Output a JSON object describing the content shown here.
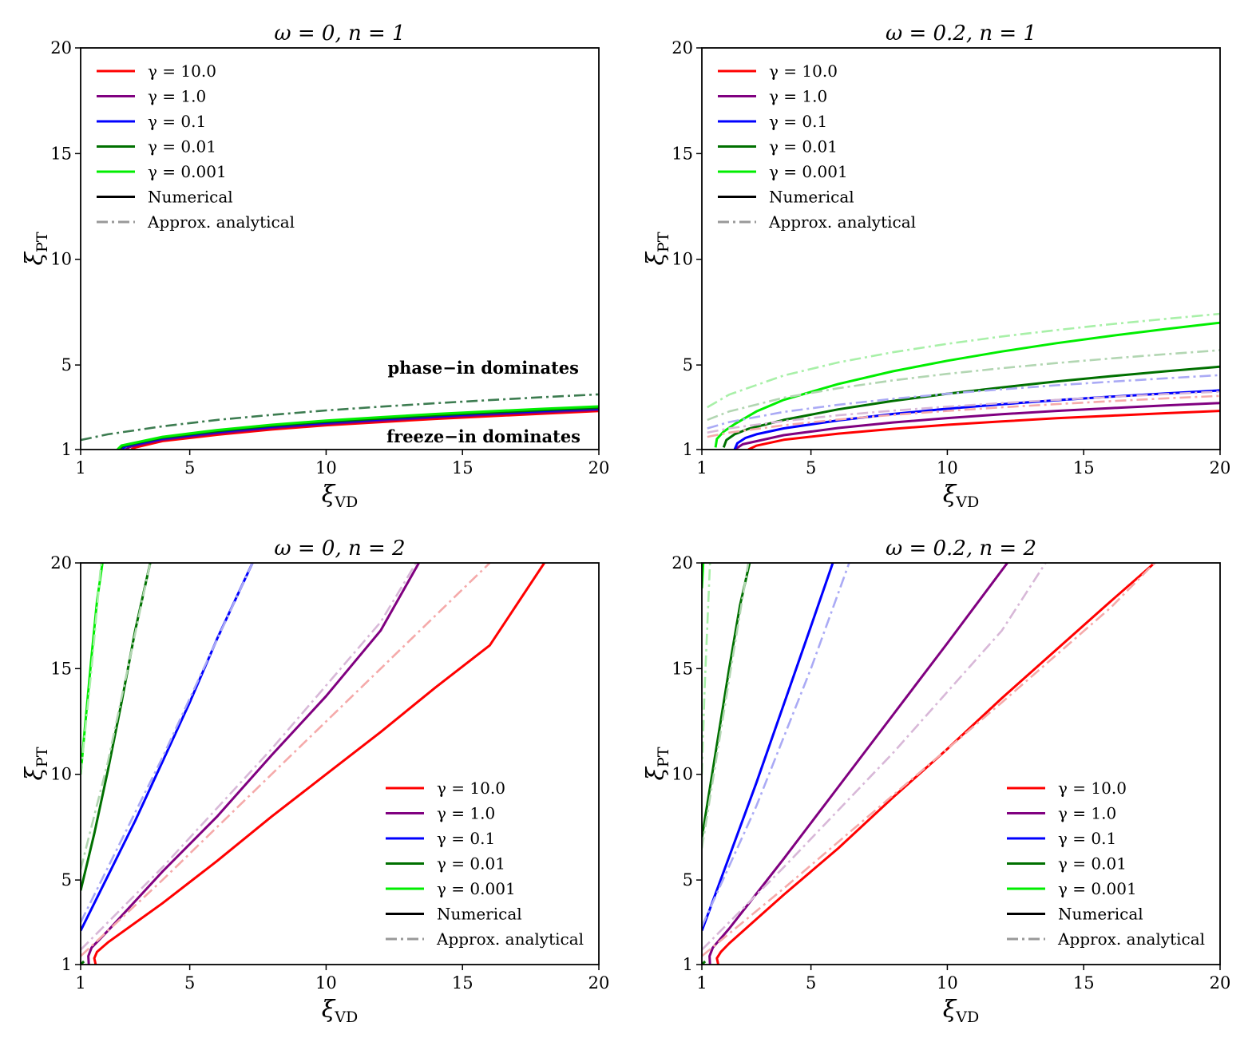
{
  "chart_data": [
    {
      "type": "line",
      "title": "ω = 0, n = 1",
      "xlabel": "ξ",
      "xlabel_sub": "VD",
      "ylabel": "ξ",
      "ylabel_sub": "PT",
      "xlim": [
        1,
        20
      ],
      "ylim": [
        1,
        20
      ],
      "xticks": [
        "1",
        "5",
        "10",
        "15",
        "20"
      ],
      "yticks": [
        "1",
        "5",
        "10",
        "15",
        "20"
      ],
      "legend_position": "upper-left",
      "annotations": [
        "phase−in dominates",
        "freeze−in dominates"
      ],
      "series": [
        {
          "name": "γ = 10.0",
          "color": "#ff0000",
          "style": "solid",
          "x": [
            2.85,
            3.0,
            4,
            6,
            8,
            10,
            12,
            14,
            16,
            18,
            20
          ],
          "y": [
            1.0,
            1.1,
            1.4,
            1.7,
            1.95,
            2.15,
            2.3,
            2.45,
            2.58,
            2.7,
            2.82
          ]
        },
        {
          "name": "γ = 1.0",
          "color": "#800080",
          "style": "solid",
          "x": [
            2.65,
            2.8,
            4,
            6,
            8,
            10,
            12,
            14,
            16,
            18,
            20
          ],
          "y": [
            1.0,
            1.13,
            1.47,
            1.77,
            2.02,
            2.21,
            2.37,
            2.52,
            2.65,
            2.77,
            2.88
          ]
        },
        {
          "name": "γ = 0.1",
          "color": "#0000ff",
          "style": "solid",
          "x": [
            2.5,
            2.65,
            4,
            6,
            8,
            10,
            12,
            14,
            16,
            18,
            20
          ],
          "y": [
            1.0,
            1.15,
            1.52,
            1.83,
            2.08,
            2.27,
            2.43,
            2.58,
            2.71,
            2.83,
            2.94
          ]
        },
        {
          "name": "γ = 0.01",
          "color": "#007000",
          "style": "solid",
          "x": [
            2.4,
            2.55,
            4,
            6,
            8,
            10,
            12,
            14,
            16,
            18,
            20
          ],
          "y": [
            1.0,
            1.17,
            1.56,
            1.87,
            2.12,
            2.31,
            2.47,
            2.62,
            2.75,
            2.87,
            2.98
          ]
        },
        {
          "name": "γ = 0.001",
          "color": "#00ee00",
          "style": "solid",
          "x": [
            2.35,
            2.5,
            4,
            6,
            8,
            10,
            12,
            14,
            16,
            18,
            20
          ],
          "y": [
            1.0,
            1.19,
            1.6,
            1.92,
            2.17,
            2.37,
            2.53,
            2.68,
            2.81,
            2.93,
            3.04
          ]
        },
        {
          "name": "Approx. analytical (all γ)",
          "color": "#3c7c50",
          "style": "dashdot",
          "x": [
            1,
            2,
            4,
            6,
            8,
            10,
            12,
            14,
            16,
            18,
            20
          ],
          "y": [
            1.45,
            1.72,
            2.1,
            2.4,
            2.64,
            2.85,
            3.03,
            3.19,
            3.34,
            3.48,
            3.61
          ]
        }
      ]
    },
    {
      "type": "line",
      "title": "ω = 0.2, n = 1",
      "xlabel": "ξ",
      "xlabel_sub": "VD",
      "ylabel": "ξ",
      "ylabel_sub": "PT",
      "xlim": [
        1,
        20
      ],
      "ylim": [
        1,
        20
      ],
      "xticks": [
        "1",
        "5",
        "10",
        "15",
        "20"
      ],
      "yticks": [
        "1",
        "5",
        "10",
        "15",
        "20"
      ],
      "legend_position": "upper-left",
      "series": [
        {
          "name": "γ = 10.0",
          "color": "#ff0000",
          "style": "solid",
          "x": [
            2.7,
            3,
            4,
            6,
            8,
            10,
            12,
            14,
            16,
            18,
            20
          ],
          "y": [
            1.0,
            1.18,
            1.46,
            1.75,
            1.98,
            2.17,
            2.33,
            2.48,
            2.6,
            2.72,
            2.83
          ]
        },
        {
          "name": "γ = 1.0",
          "color": "#800080",
          "style": "solid",
          "x": [
            2.2,
            2.5,
            4,
            6,
            8,
            10,
            12,
            14,
            16,
            18,
            20
          ],
          "y": [
            1.0,
            1.25,
            1.68,
            2.02,
            2.28,
            2.49,
            2.67,
            2.83,
            2.96,
            3.09,
            3.2
          ]
        },
        {
          "name": "γ = 0.1",
          "color": "#0000ff",
          "style": "solid",
          "x": [
            2.2,
            2.3,
            2.6,
            3,
            4,
            6,
            8,
            10,
            12,
            14,
            16,
            18,
            20
          ],
          "y": [
            1.0,
            1.3,
            1.55,
            1.72,
            2.0,
            2.38,
            2.68,
            2.93,
            3.14,
            3.33,
            3.5,
            3.65,
            3.8
          ]
        },
        {
          "name": "γ = 0.01",
          "color": "#007000",
          "style": "solid",
          "x": [
            1.8,
            1.9,
            2.2,
            2.7,
            4,
            6,
            8,
            10,
            12,
            14,
            16,
            18,
            20
          ],
          "y": [
            1.1,
            1.45,
            1.72,
            1.98,
            2.4,
            2.9,
            3.3,
            3.64,
            3.94,
            4.22,
            4.47,
            4.7,
            4.92
          ]
        },
        {
          "name": "γ = 0.001",
          "color": "#00ee00",
          "style": "solid",
          "x": [
            1.5,
            1.55,
            1.8,
            2.2,
            3,
            4,
            6,
            8,
            10,
            12,
            14,
            16,
            18,
            20
          ],
          "y": [
            1.1,
            1.5,
            1.85,
            2.2,
            2.8,
            3.35,
            4.1,
            4.7,
            5.2,
            5.64,
            6.03,
            6.38,
            6.7,
            7.0
          ]
        },
        {
          "name": "γ = 10.0 approx.",
          "color": "#f5aaaa",
          "style": "dashdot",
          "x": [
            1.2,
            2,
            4,
            6,
            8,
            10,
            12,
            14,
            16,
            18,
            20
          ],
          "y": [
            1.6,
            1.8,
            2.15,
            2.42,
            2.64,
            2.83,
            3.0,
            3.15,
            3.29,
            3.42,
            3.54
          ]
        },
        {
          "name": "γ = 1.0 approx.",
          "color": "#d8b8d8",
          "style": "dashdot",
          "x": [
            1.2,
            2,
            4,
            6,
            8,
            10,
            12,
            14,
            16,
            18,
            20
          ],
          "y": [
            1.8,
            2.0,
            2.35,
            2.62,
            2.84,
            3.03,
            3.2,
            3.35,
            3.49,
            3.62,
            3.74
          ]
        },
        {
          "name": "γ = 0.1 approx.",
          "color": "#aaaaf5",
          "style": "dashdot",
          "x": [
            1.2,
            2,
            4,
            6,
            8,
            10,
            12,
            14,
            16,
            18,
            20
          ],
          "y": [
            2.0,
            2.3,
            2.78,
            3.12,
            3.4,
            3.64,
            3.85,
            4.04,
            4.21,
            4.37,
            4.52
          ]
        },
        {
          "name": "γ = 0.01 approx.",
          "color": "#b2d6b2",
          "style": "dashdot",
          "x": [
            1.2,
            2,
            4,
            6,
            8,
            10,
            12,
            14,
            16,
            18,
            20
          ],
          "y": [
            2.4,
            2.8,
            3.45,
            3.9,
            4.27,
            4.58,
            4.85,
            5.09,
            5.31,
            5.51,
            5.7
          ]
        },
        {
          "name": "γ = 0.001 approx.",
          "color": "#a8f0a8",
          "style": "dashdot",
          "x": [
            1.2,
            2,
            4,
            6,
            8,
            10,
            12,
            14,
            16,
            18,
            20
          ],
          "y": [
            3.0,
            3.6,
            4.5,
            5.12,
            5.6,
            6.0,
            6.35,
            6.65,
            6.93,
            7.18,
            7.42
          ]
        }
      ]
    },
    {
      "type": "line",
      "title": "ω = 0, n = 2",
      "xlabel": "ξ",
      "xlabel_sub": "VD",
      "ylabel": "ξ",
      "ylabel_sub": "PT",
      "xlim": [
        1,
        20
      ],
      "ylim": [
        1,
        20
      ],
      "xticks": [
        "1",
        "5",
        "10",
        "15",
        "20"
      ],
      "yticks": [
        "1",
        "5",
        "10",
        "15",
        "20"
      ],
      "legend_position": "lower-right",
      "series": [
        {
          "name": "γ = 10.0",
          "color": "#ff0000",
          "style": "solid",
          "x": [
            1.55,
            1.5,
            1.6,
            2,
            4,
            6,
            8,
            10,
            12,
            14,
            16,
            18
          ],
          "y": [
            1.0,
            1.3,
            1.6,
            2.05,
            3.9,
            5.9,
            8.0,
            10.0,
            12.0,
            14.1,
            16.1,
            20.0
          ]
        },
        {
          "name": "γ = 1.0",
          "color": "#800080",
          "style": "solid",
          "x": [
            1.3,
            1.28,
            1.4,
            2,
            4,
            6,
            8,
            10,
            12,
            13.4
          ],
          "y": [
            1.0,
            1.4,
            1.8,
            2.6,
            5.4,
            8.0,
            10.9,
            13.7,
            16.8,
            20.0
          ]
        },
        {
          "name": "γ = 0.1",
          "color": "#0000ff",
          "style": "solid",
          "x": [
            1.0,
            2,
            3,
            4,
            5,
            6,
            7.3
          ],
          "y": [
            2.6,
            5.2,
            7.8,
            10.6,
            13.4,
            16.4,
            20.0
          ]
        },
        {
          "name": "γ = 0.01",
          "color": "#007000",
          "style": "solid",
          "x": [
            1.0,
            1.5,
            2,
            2.5,
            3.0,
            3.55
          ],
          "y": [
            4.5,
            7.2,
            10.2,
            13.4,
            16.8,
            20.0
          ]
        },
        {
          "name": "γ = 0.001",
          "color": "#00ee00",
          "style": "solid",
          "x": [
            1.0,
            1.2,
            1.4,
            1.6,
            1.8
          ],
          "y": [
            10.0,
            12.8,
            15.6,
            18.2,
            20.0
          ]
        },
        {
          "name": "γ = 0.01 (near origin)",
          "color": "#007000",
          "style": "solid",
          "x": [
            1.0,
            1.12
          ],
          "y": [
            1.0,
            1.15
          ]
        },
        {
          "name": "γ = 10.0 approx.",
          "color": "#f5aaaa",
          "style": "dashdot",
          "x": [
            1.0,
            4,
            8,
            12,
            16.0
          ],
          "y": [
            1.4,
            5.0,
            10.0,
            15.0,
            20.0
          ]
        },
        {
          "name": "γ = 1.0 approx.",
          "color": "#d8b8d8",
          "style": "dashdot",
          "x": [
            1.0,
            4,
            8,
            12,
            13.3
          ],
          "y": [
            1.7,
            5.6,
            11.2,
            17.2,
            20.0
          ]
        },
        {
          "name": "γ = 0.1 approx.",
          "color": "#aaaaf5",
          "style": "dashdot",
          "x": [
            1.0,
            4,
            7.3
          ],
          "y": [
            3.0,
            10.8,
            20.0
          ]
        },
        {
          "name": "γ = 0.01 approx.",
          "color": "#b2d6b2",
          "style": "dashdot",
          "x": [
            1.0,
            2,
            3.55
          ],
          "y": [
            5.5,
            10.6,
            20.0
          ]
        },
        {
          "name": "γ = 0.001 approx.",
          "color": "#a8f0a8",
          "style": "dashdot",
          "x": [
            1.0,
            1.4,
            1.75
          ],
          "y": [
            10.0,
            15.0,
            20.0
          ]
        }
      ]
    },
    {
      "type": "line",
      "title": "ω = 0.2, n = 2",
      "xlabel": "ξ",
      "xlabel_sub": "VD",
      "ylabel": "ξ",
      "ylabel_sub": "PT",
      "xlim": [
        1,
        20
      ],
      "ylim": [
        1,
        20
      ],
      "xticks": [
        "1",
        "5",
        "10",
        "15",
        "20"
      ],
      "yticks": [
        "1",
        "5",
        "10",
        "15",
        "20"
      ],
      "legend_position": "lower-right",
      "series": [
        {
          "name": "γ = 10.0",
          "color": "#ff0000",
          "style": "solid",
          "x": [
            1.6,
            1.55,
            1.7,
            2,
            4,
            6,
            8,
            10,
            12,
            14,
            16,
            17.6
          ],
          "y": [
            1.0,
            1.3,
            1.6,
            2.0,
            4.3,
            6.5,
            8.9,
            11.2,
            13.6,
            15.9,
            18.2,
            20.0
          ]
        },
        {
          "name": "γ = 1.0",
          "color": "#800080",
          "style": "solid",
          "x": [
            1.3,
            1.28,
            1.4,
            2,
            4,
            6,
            8,
            10,
            12.2
          ],
          "y": [
            1.0,
            1.4,
            1.8,
            2.7,
            6.0,
            9.4,
            12.8,
            16.2,
            20.0
          ]
        },
        {
          "name": "γ = 0.1",
          "color": "#0000ff",
          "style": "solid",
          "x": [
            1.0,
            2,
            3,
            4,
            5,
            5.8
          ],
          "y": [
            2.6,
            6.1,
            9.6,
            13.3,
            17.0,
            20.0
          ]
        },
        {
          "name": "γ = 0.01",
          "color": "#007000",
          "style": "solid",
          "x": [
            1.0,
            1.5,
            2,
            2.4,
            2.75
          ],
          "y": [
            7.0,
            11.0,
            15.0,
            18.0,
            20.0
          ]
        },
        {
          "name": "γ = 0.001",
          "color": "#00ee00",
          "style": "solid",
          "x": [
            1.0,
            1.05
          ],
          "y": [
            18.8,
            20.0
          ]
        },
        {
          "name": "γ = 0.01 (near origin)",
          "color": "#007000",
          "style": "solid",
          "x": [
            1.0,
            1.12
          ],
          "y": [
            1.0,
            1.15
          ]
        },
        {
          "name": "γ = 10.0 approx.",
          "color": "#f5aaaa",
          "style": "dashdot",
          "x": [
            1.0,
            4,
            8,
            12,
            16,
            17.6
          ],
          "y": [
            1.4,
            4.6,
            9.0,
            13.4,
            17.9,
            20.0
          ]
        },
        {
          "name": "γ = 1.0 approx.",
          "color": "#d8b8d8",
          "style": "dashdot",
          "x": [
            1.0,
            4,
            8,
            12,
            13.6
          ],
          "y": [
            1.7,
            5.6,
            11.0,
            16.8,
            20.0
          ]
        },
        {
          "name": "γ = 0.1 approx.",
          "color": "#aaaaf5",
          "style": "dashdot",
          "x": [
            1.0,
            3,
            5,
            6.4
          ],
          "y": [
            2.8,
            8.5,
            15.0,
            20.0
          ]
        },
        {
          "name": "γ = 0.01 approx.",
          "color": "#b2d6b2",
          "style": "dashdot",
          "x": [
            1.0,
            1.5,
            2,
            2.7
          ],
          "y": [
            6.5,
            10.5,
            14.5,
            20.0
          ]
        },
        {
          "name": "γ = 0.001 approx.",
          "color": "#a8f0a8",
          "style": "dashdot",
          "x": [
            1.0,
            1.1,
            1.3
          ],
          "y": [
            10.0,
            14.0,
            20.0
          ]
        }
      ]
    }
  ],
  "legend": {
    "items": [
      {
        "label": "γ = 10.0",
        "color": "#ff0000",
        "style": "solid"
      },
      {
        "label": "γ = 1.0",
        "color": "#800080",
        "style": "solid"
      },
      {
        "label": "γ = 0.1",
        "color": "#0000ff",
        "style": "solid"
      },
      {
        "label": "γ = 0.01",
        "color": "#007000",
        "style": "solid"
      },
      {
        "label": "γ = 0.001",
        "color": "#00ee00",
        "style": "solid"
      },
      {
        "label": "Numerical",
        "color": "#000000",
        "style": "solid"
      },
      {
        "label": "Approx. analytical",
        "color": "#999999",
        "style": "dashdot"
      }
    ]
  }
}
